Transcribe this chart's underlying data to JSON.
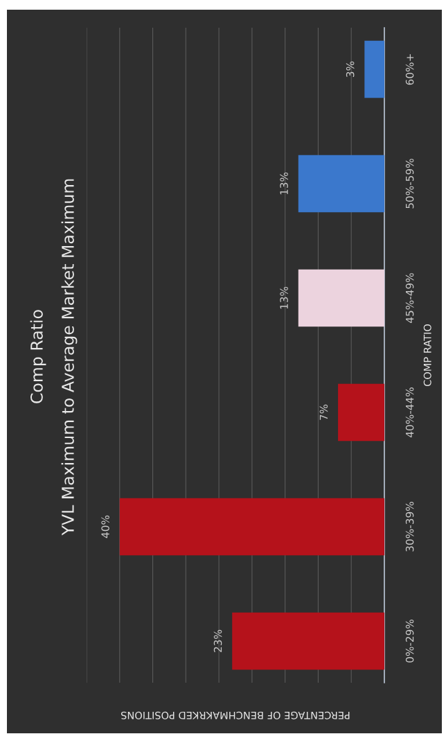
{
  "chart_data": {
    "type": "bar",
    "orientation": "horizontal",
    "title": "Comp Ratio",
    "subtitle": "YVL Maximum to Average Market Maximum",
    "xlabel": "PERCENTAGE OF BENCHMAKRKED POSITIONS",
    "ylabel": "COMP RATIO",
    "categories": [
      "60%+",
      "50%-59%",
      "45%-49%",
      "40%-44%",
      "30%-39%",
      "0%-29%"
    ],
    "values": [
      3,
      13,
      13,
      7,
      40,
      23
    ],
    "value_labels": [
      "3%",
      "13%",
      "13%",
      "7%",
      "40%",
      "23%"
    ],
    "colors": [
      "#3b78cc",
      "#3b78cc",
      "#ecd3de",
      "#b5121b",
      "#b5121b",
      "#b5121b"
    ],
    "xlim": [
      45,
      0
    ],
    "xticks": [
      {
        "value": 0,
        "label": null
      },
      {
        "value": 5,
        "label": null
      },
      {
        "value": 10,
        "label": null
      },
      {
        "value": 15,
        "label": null
      },
      {
        "value": 20,
        "label": null
      },
      {
        "value": 25,
        "label": null
      },
      {
        "value": 30,
        "label": null
      },
      {
        "value": 35,
        "label": null
      },
      {
        "value": 40,
        "label": null
      },
      {
        "value": 45,
        "label": null
      }
    ],
    "grid": "x",
    "legend": false,
    "tick_labels": "y"
  }
}
